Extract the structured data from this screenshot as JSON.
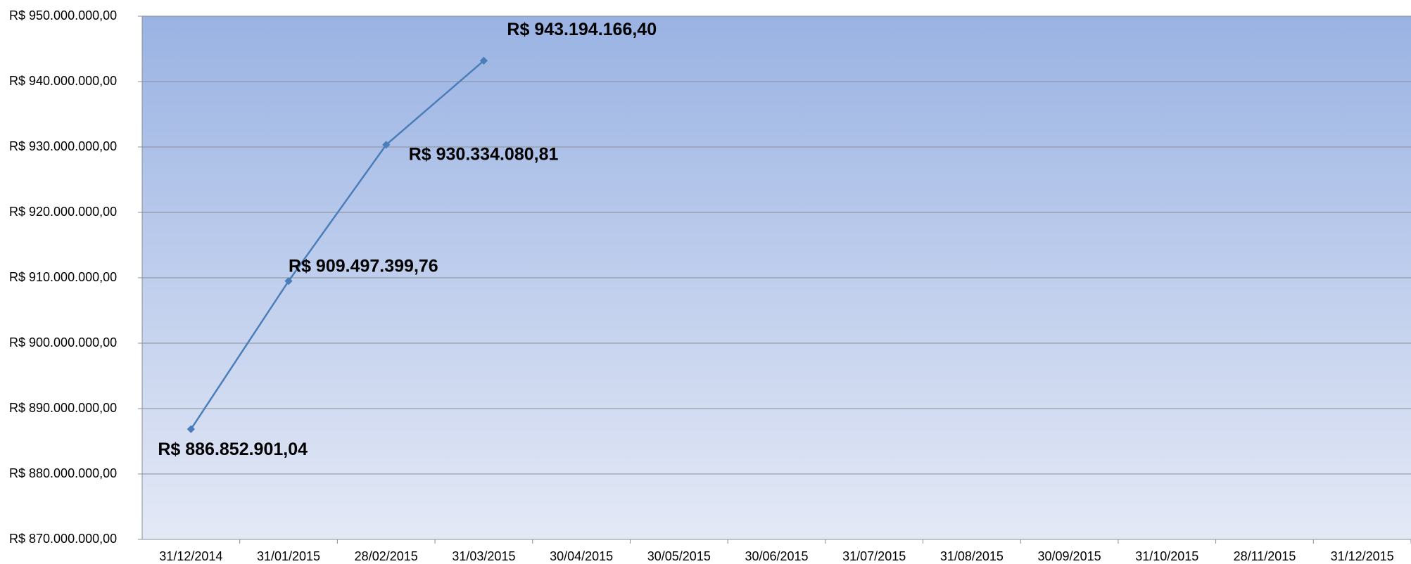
{
  "chart_data": {
    "type": "line",
    "categories": [
      "31/12/2014",
      "31/01/2015",
      "28/02/2015",
      "31/03/2015",
      "30/04/2015",
      "30/05/2015",
      "30/06/2015",
      "31/07/2015",
      "31/08/2015",
      "30/09/2015",
      "31/10/2015",
      "28/11/2015",
      "31/12/2015"
    ],
    "series": [
      {
        "color": "#4a7ebb",
        "values": [
          886852901.04,
          909497399.76,
          930334080.81,
          943194166.4,
          null,
          null,
          null,
          null,
          null,
          null,
          null,
          null,
          null
        ],
        "value_labels": [
          "R$ 886.852.901,04",
          "R$ 909.497.399,76",
          "R$ 930.334.080,81",
          "R$ 943.194.166,40",
          null,
          null,
          null,
          null,
          null,
          null,
          null,
          null,
          null
        ]
      }
    ],
    "ylim": [
      870000000,
      950000000
    ],
    "yticks": [
      {
        "value": 870000000,
        "label": "R$ 870.000.000,00"
      },
      {
        "value": 880000000,
        "label": "R$ 880.000.000,00"
      },
      {
        "value": 890000000,
        "label": "R$ 890.000.000,00"
      },
      {
        "value": 900000000,
        "label": "R$ 900.000.000,00"
      },
      {
        "value": 910000000,
        "label": "R$ 910.000.000,00"
      },
      {
        "value": 920000000,
        "label": "R$ 920.000.000,00"
      },
      {
        "value": 930000000,
        "label": "R$ 930.000.000,00"
      },
      {
        "value": 940000000,
        "label": "R$ 940.000.000,00"
      },
      {
        "value": 950000000,
        "label": "R$ 950.000.000,00"
      }
    ],
    "grid": true
  }
}
